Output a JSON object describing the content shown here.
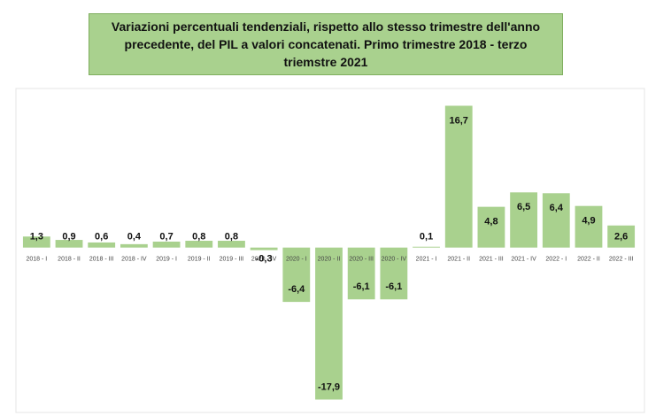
{
  "chart_data": {
    "type": "bar",
    "title": "Variazioni percentuali tendenziali, rispetto allo stesso trimestre dell'anno precedente, del PIL a valori concatenati. Primo trimestre 2018 - terzo triemstre 2021",
    "categories": [
      "2018 - I",
      "2018 - II",
      "2018 - III",
      "2018 - IV",
      "2019 - I",
      "2019 - II",
      "2019 - III",
      "2020 - IV",
      "2020 - I",
      "2020 - II",
      "2020 - III",
      "2020 - IV",
      "2021 - I",
      "2021 - II",
      "2021 - III",
      "2021 - IV",
      "2022 - I",
      "2022 - II",
      "2022 - III"
    ],
    "values": [
      1.3,
      0.9,
      0.6,
      0.4,
      0.7,
      0.8,
      0.8,
      -0.3,
      -6.4,
      -17.9,
      -6.1,
      -6.1,
      0.1,
      16.7,
      4.8,
      6.5,
      6.4,
      4.9,
      2.6
    ],
    "value_labels": [
      "1,3",
      "0,9",
      "0,6",
      "0,4",
      "0,7",
      "0,8",
      "0,8",
      "-0,3",
      "-6,4",
      "-17,9",
      "-6,1",
      "-6,1",
      "0,1",
      "16,7",
      "4,8",
      "6,5",
      "6,4",
      "4,9",
      "2,6"
    ],
    "color": "#a9d18e",
    "ylim": [
      -19,
      18
    ]
  }
}
